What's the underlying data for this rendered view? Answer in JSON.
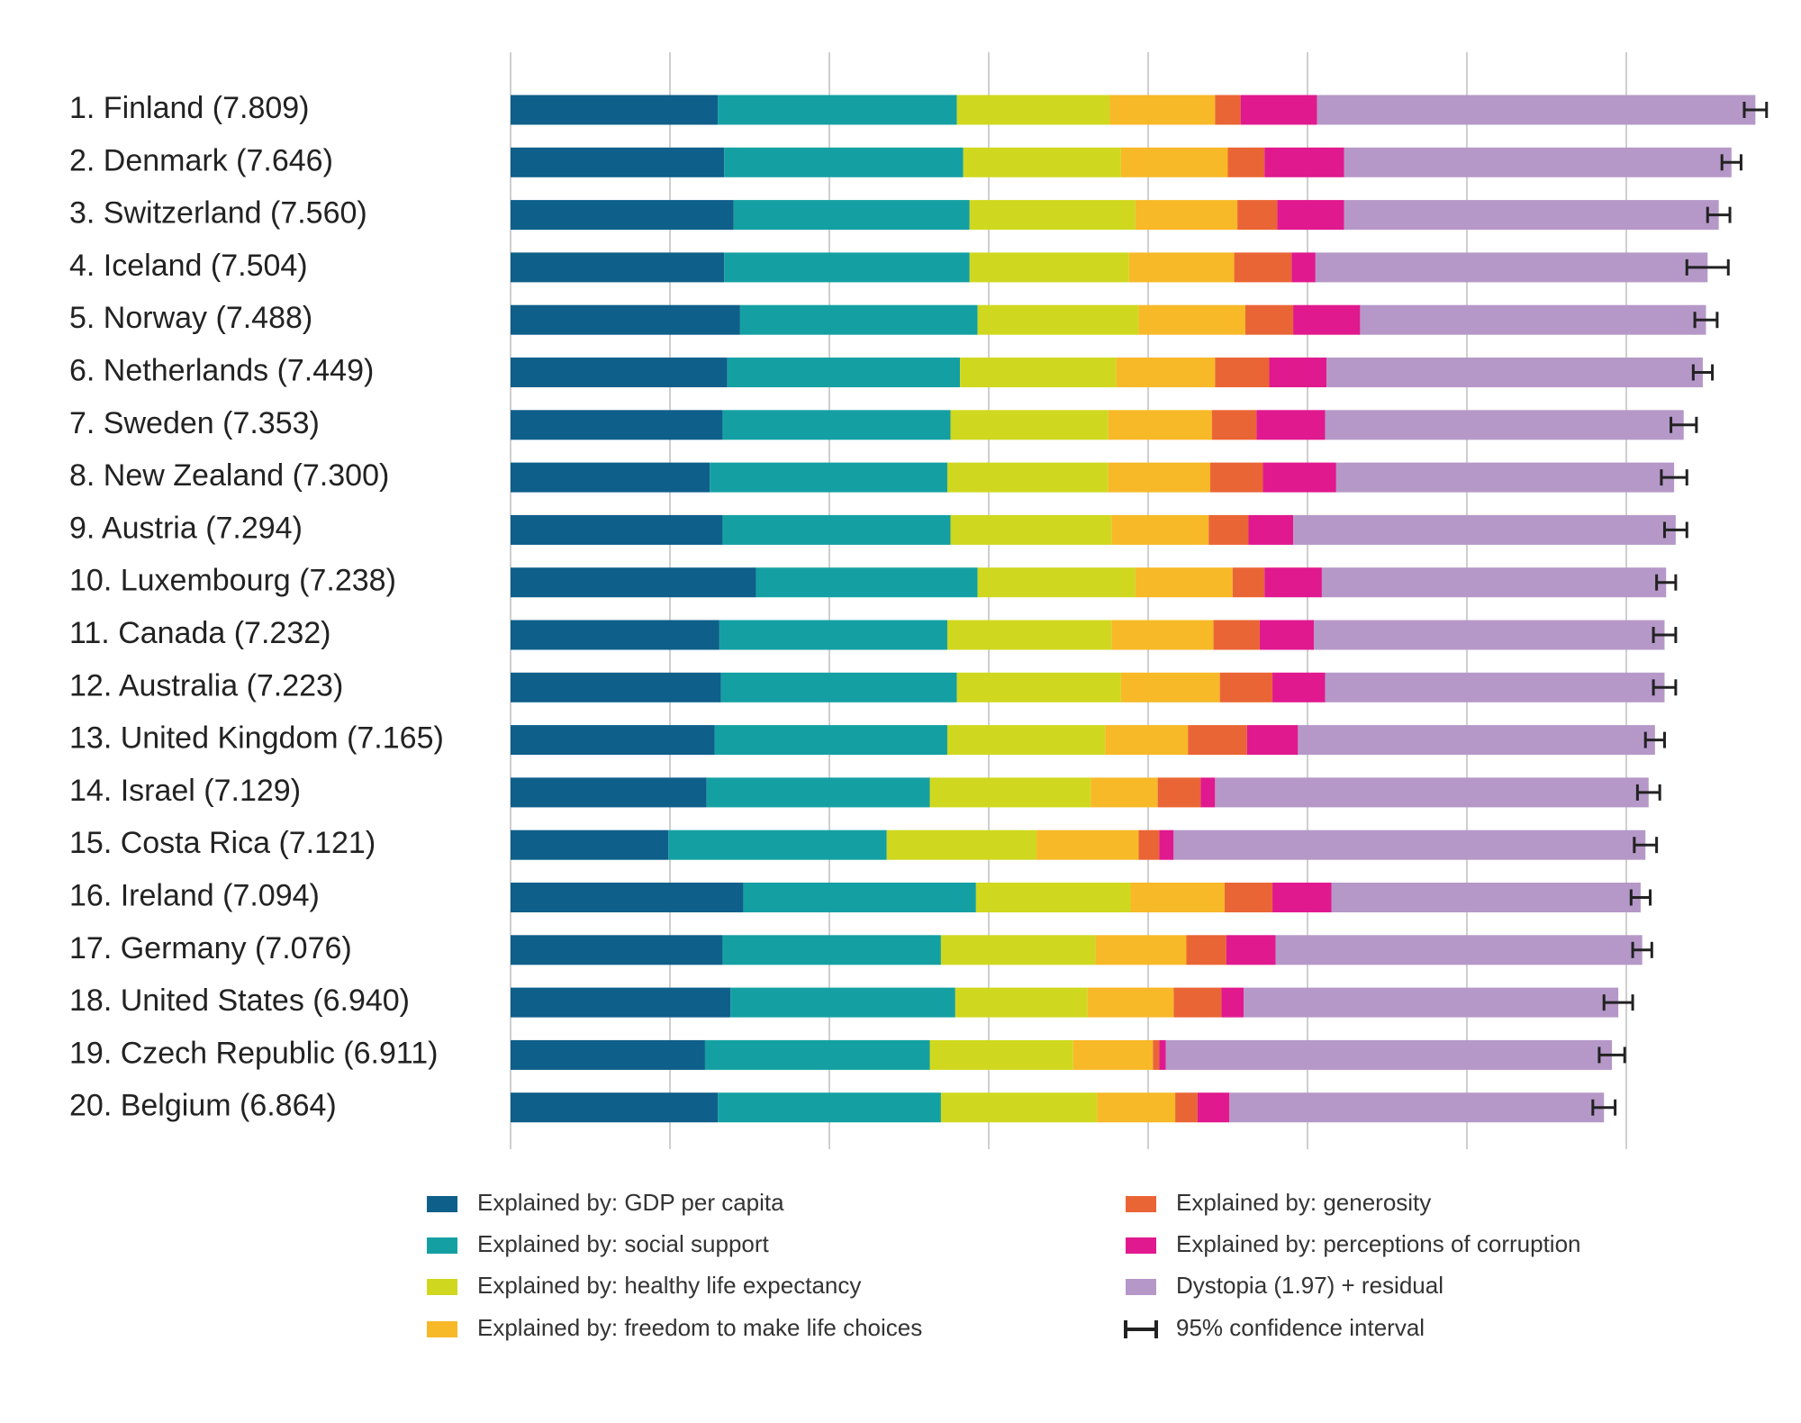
{
  "chart_data": {
    "type": "stacked-bar-horizontal",
    "categories": [
      "1. Finland (7.809)",
      "2. Denmark (7.646)",
      "3. Switzerland (7.560)",
      "4. Iceland (7.504)",
      "5. Norway (7.488)",
      "6. Netherlands (7.449)",
      "7. Sweden (7.353)",
      "8. New Zealand (7.300)",
      "9. Austria (7.294)",
      "10. Luxembourg (7.238)",
      "11. Canada (7.232)",
      "12. Australia (7.223)",
      "13. United Kingdom (7.165)",
      "14. Israel (7.129)",
      "15. Costa Rica (7.121)",
      "16. Ireland (7.094)",
      "17. Germany (7.076)",
      "18. United States (6.940)",
      "19. Czech Republic (6.911)",
      "20. Belgium (6.864)"
    ],
    "series": [
      {
        "name": "Explained by: GDP per capita",
        "color": "#0e5f8a",
        "values": [
          1.3,
          1.34,
          1.4,
          1.34,
          1.44,
          1.36,
          1.33,
          1.25,
          1.33,
          1.54,
          1.31,
          1.32,
          1.28,
          1.23,
          0.99,
          1.46,
          1.33,
          1.38,
          1.22,
          1.3
        ]
      },
      {
        "name": "Explained by: social support",
        "color": "#14a0a3",
        "values": [
          1.5,
          1.5,
          1.48,
          1.54,
          1.49,
          1.46,
          1.43,
          1.49,
          1.43,
          1.39,
          1.43,
          1.48,
          1.46,
          1.4,
          1.37,
          1.46,
          1.37,
          1.41,
          1.41,
          1.4
        ]
      },
      {
        "name": "Explained by: healthy life expectancy",
        "color": "#cfd81f",
        "values": [
          0.96,
          0.99,
          1.04,
          1.0,
          1.01,
          0.98,
          0.99,
          1.01,
          1.01,
          0.99,
          1.03,
          1.03,
          0.99,
          1.01,
          0.94,
          0.97,
          0.97,
          0.83,
          0.9,
          0.98
        ]
      },
      {
        "name": "Explained by: freedom to make life choices",
        "color": "#f7b928",
        "values": [
          0.66,
          0.67,
          0.64,
          0.66,
          0.67,
          0.62,
          0.65,
          0.64,
          0.61,
          0.61,
          0.64,
          0.62,
          0.52,
          0.42,
          0.64,
          0.59,
          0.57,
          0.54,
          0.5,
          0.49
        ]
      },
      {
        "name": "Explained by: generosity",
        "color": "#ea6535",
        "values": [
          0.16,
          0.23,
          0.25,
          0.36,
          0.3,
          0.34,
          0.28,
          0.33,
          0.25,
          0.2,
          0.29,
          0.33,
          0.37,
          0.27,
          0.13,
          0.3,
          0.25,
          0.3,
          0.04,
          0.14
        ]
      },
      {
        "name": "Explained by: perceptions of corruption",
        "color": "#e0198e",
        "values": [
          0.48,
          0.5,
          0.42,
          0.15,
          0.42,
          0.36,
          0.43,
          0.46,
          0.28,
          0.36,
          0.34,
          0.33,
          0.32,
          0.09,
          0.09,
          0.37,
          0.31,
          0.14,
          0.04,
          0.2
        ]
      },
      {
        "name": "Dystopia (1.97) + residual",
        "color": "#b598c8",
        "values": [
          2.75,
          2.43,
          2.35,
          2.46,
          2.17,
          2.36,
          2.25,
          2.12,
          2.4,
          2.16,
          2.2,
          2.13,
          2.24,
          2.72,
          2.96,
          1.94,
          2.3,
          2.35,
          2.8,
          2.35
        ]
      }
    ],
    "error_name": "95% confidence interval",
    "error_color": "#222222",
    "error": [
      0.07,
      0.06,
      0.07,
      0.13,
      0.07,
      0.06,
      0.08,
      0.08,
      0.07,
      0.06,
      0.07,
      0.07,
      0.06,
      0.07,
      0.07,
      0.06,
      0.06,
      0.09,
      0.08,
      0.07
    ],
    "xlim": [
      0,
      8
    ],
    "xticks": [
      0,
      1,
      2,
      3,
      4,
      5,
      6,
      7
    ],
    "grid": true
  }
}
